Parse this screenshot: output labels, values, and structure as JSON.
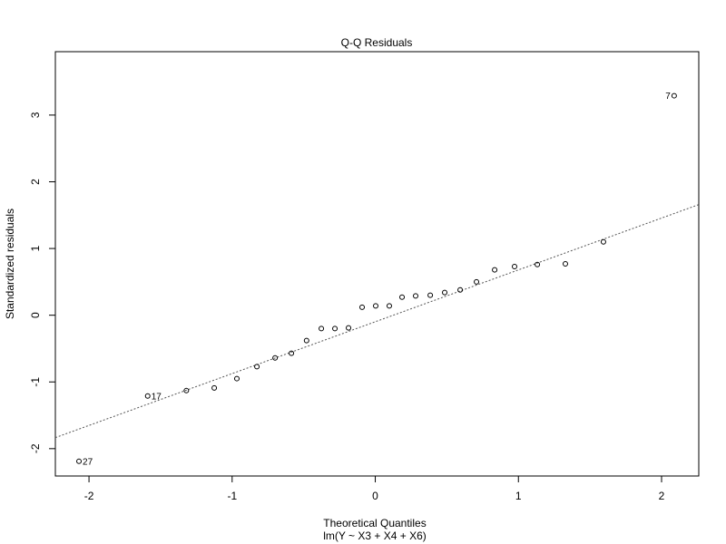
{
  "chart_data": {
    "type": "scatter",
    "title": "Q-Q Residuals",
    "x_label": "Theoretical Quantiles",
    "subtitle": "lm(Y ~ X3 + X4 + X6)",
    "y_label": "Standardized residuals",
    "x": [
      -2.07,
      -1.59,
      -1.32,
      -1.125,
      -0.967,
      -0.827,
      -0.7,
      -0.586,
      -0.48,
      -0.377,
      -0.282,
      -0.187,
      -0.092,
      0.003,
      0.098,
      0.187,
      0.282,
      0.384,
      0.485,
      0.593,
      0.707,
      0.834,
      0.973,
      1.132,
      1.328,
      1.594,
      2.088
    ],
    "values": [
      -2.19,
      -1.21,
      -1.13,
      -1.09,
      -0.95,
      -0.77,
      -0.64,
      -0.57,
      -0.38,
      -0.2,
      -0.2,
      -0.19,
      0.12,
      0.14,
      0.14,
      0.27,
      0.29,
      0.3,
      0.34,
      0.38,
      0.5,
      0.68,
      0.73,
      0.76,
      0.77,
      1.1,
      3.29
    ],
    "point_labels": [
      "27",
      "17",
      null,
      null,
      null,
      null,
      null,
      null,
      null,
      null,
      null,
      null,
      null,
      null,
      null,
      null,
      null,
      null,
      null,
      null,
      null,
      null,
      null,
      null,
      null,
      null,
      "7"
    ],
    "qq_line": {
      "intercept": -0.098,
      "slope": 0.777
    },
    "xlim": [
      -2.235,
      2.26
    ],
    "ylim": [
      -2.41,
      3.95
    ],
    "xticks": [
      -2,
      -1,
      0,
      1,
      2
    ],
    "yticks": [
      -2,
      -1,
      0,
      1,
      2,
      3
    ]
  }
}
